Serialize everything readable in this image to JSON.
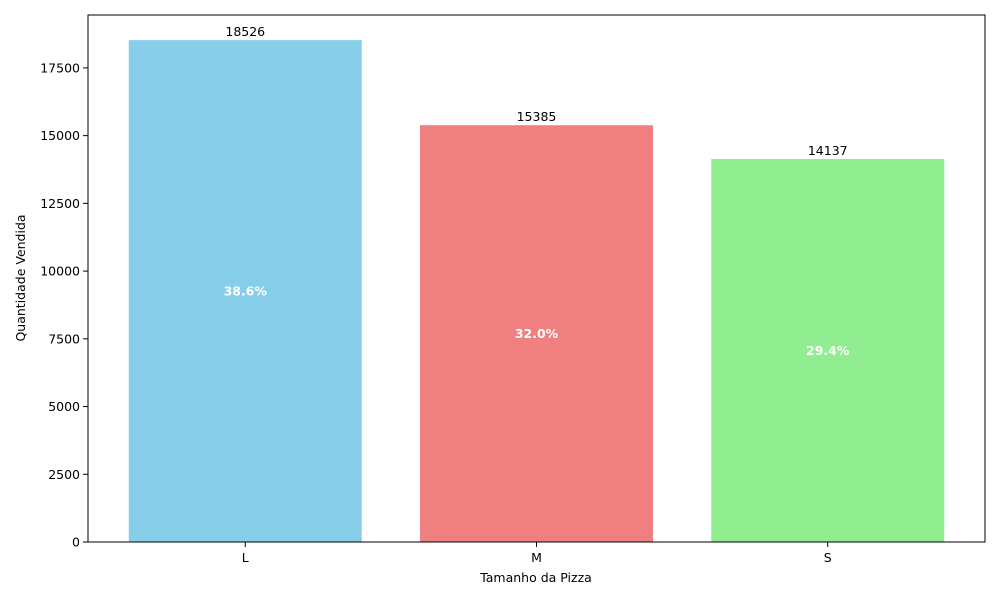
{
  "chart_data": {
    "type": "bar",
    "title": "",
    "xlabel": "Tamanho da Pizza",
    "ylabel": "Quantidade Vendida",
    "categories": [
      "L",
      "M",
      "S"
    ],
    "values": [
      18526,
      15385,
      14137
    ],
    "value_labels": [
      "18526",
      "15385",
      "14137"
    ],
    "percent_labels": [
      "38.6%",
      "32.0%",
      "29.4%"
    ],
    "colors": [
      "#87ceeb",
      "#f08080",
      "#90ee90"
    ],
    "ylim": [
      0,
      19453
    ],
    "yticks": [
      0,
      2500,
      5000,
      7500,
      10000,
      12500,
      15000,
      17500
    ],
    "ytick_labels": [
      "0",
      "2500",
      "5000",
      "7500",
      "10000",
      "12500",
      "15000",
      "17500"
    ],
    "grid": false,
    "legend": "none"
  }
}
